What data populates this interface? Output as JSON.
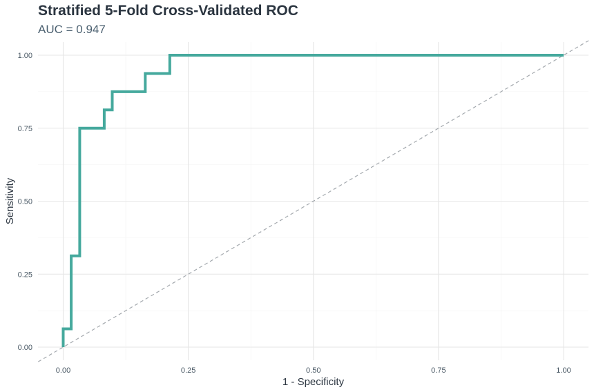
{
  "chart_data": {
    "type": "line",
    "title": "Stratified 5-Fold Cross-Validated ROC",
    "subtitle": "AUC = 0.947",
    "xlabel": "1 - Specificity",
    "ylabel": "Sensitivity",
    "xlim": [
      0,
      1
    ],
    "ylim": [
      0,
      1
    ],
    "x_ticks": [
      0,
      0.25,
      0.5,
      0.75,
      1
    ],
    "y_ticks": [
      0,
      0.25,
      0.5,
      0.75,
      1
    ],
    "x_tick_labels": [
      "0.00",
      "0.25",
      "0.50",
      "0.75",
      "1.00"
    ],
    "y_tick_labels": [
      "0.00",
      "0.25",
      "0.50",
      "0.75",
      "1.00"
    ],
    "grid": true,
    "series": [
      {
        "color": "#45a99d",
        "step": true,
        "x": [
          0.0,
          0.0,
          0.016,
          0.016,
          0.033,
          0.033,
          0.082,
          0.082,
          0.098,
          0.098,
          0.164,
          0.164,
          0.213,
          0.213,
          1.0
        ],
        "y": [
          0.0,
          0.0625,
          0.0625,
          0.3125,
          0.3125,
          0.75,
          0.75,
          0.8125,
          0.8125,
          0.875,
          0.875,
          0.9375,
          0.9375,
          1.0,
          1.0
        ]
      }
    ],
    "reference_line": {
      "color": "#a3a8ad",
      "dashed": true,
      "x": [
        -0.05,
        1.05
      ],
      "y": [
        -0.05,
        1.05
      ]
    }
  }
}
